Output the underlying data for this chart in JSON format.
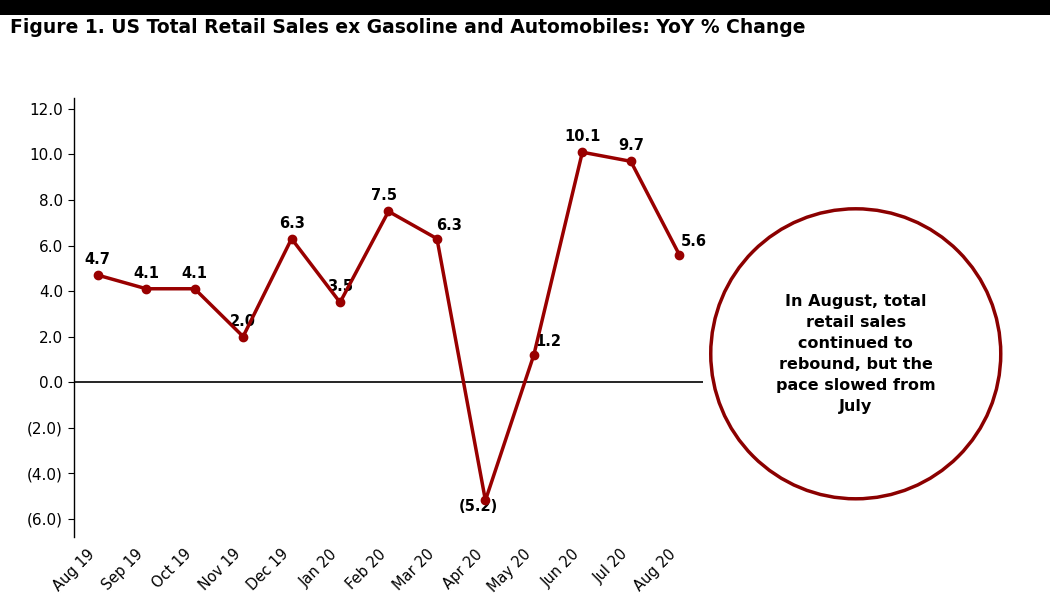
{
  "title": "Figure 1. US Total Retail Sales ex Gasoline and Automobiles: YoY % Change",
  "categories": [
    "Aug 19",
    "Sep 19",
    "Oct 19",
    "Nov 19",
    "Dec 19",
    "Jan 20",
    "Feb 20",
    "Mar 20",
    "Apr 20",
    "May 20",
    "Jun 20",
    "Jul 20",
    "Aug 20"
  ],
  "values": [
    4.7,
    4.1,
    4.1,
    2.0,
    6.3,
    3.5,
    7.5,
    6.3,
    -5.2,
    1.2,
    10.1,
    9.7,
    5.6
  ],
  "line_color": "#990000",
  "marker_color": "#990000",
  "yticks": [
    -6.0,
    -4.0,
    -2.0,
    0.0,
    2.0,
    4.0,
    6.0,
    8.0,
    10.0,
    12.0
  ],
  "ylim": [
    -6.8,
    12.5
  ],
  "annotation_text": "In August, total\nretail sales\ncontinued to\nrebound, but the\npace slowed from\nJuly",
  "circle_color": "#8B0000",
  "title_fontsize": 13.5,
  "background_color": "#ffffff"
}
